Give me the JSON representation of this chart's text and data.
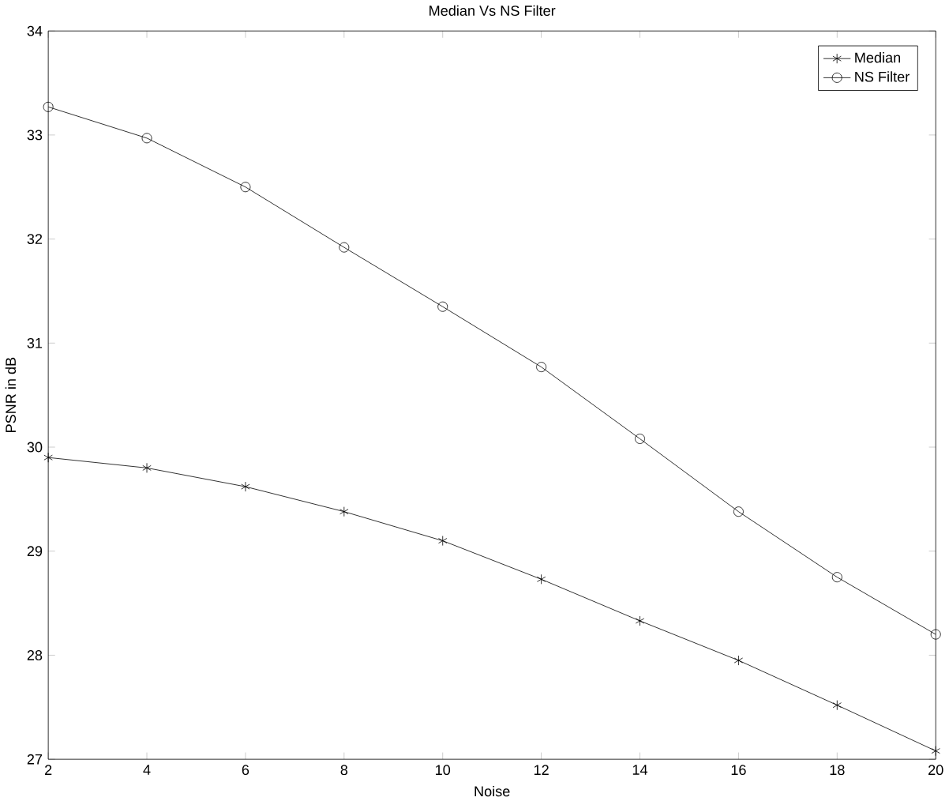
{
  "chart_data": {
    "type": "line",
    "title": "Median Vs NS Filter",
    "xlabel": "Noise",
    "ylabel": "PSNR in dB",
    "x": [
      2,
      4,
      6,
      8,
      10,
      12,
      14,
      16,
      18,
      20
    ],
    "series": [
      {
        "name": "Median",
        "color": "#000000",
        "marker": "cross",
        "values": [
          29.9,
          29.8,
          29.62,
          29.38,
          29.1,
          28.73,
          28.33,
          27.95,
          27.52,
          27.08
        ]
      },
      {
        "name": "NS Filter",
        "color": "#000000",
        "marker": "circle",
        "values": [
          33.27,
          32.97,
          32.5,
          31.92,
          31.35,
          30.77,
          30.08,
          29.38,
          28.75,
          28.2
        ]
      }
    ],
    "xlim": [
      2,
      20
    ],
    "ylim": [
      27,
      34
    ],
    "xticks": [
      2,
      4,
      6,
      8,
      10,
      12,
      14,
      16,
      18,
      20
    ],
    "yticks": [
      27,
      28,
      29,
      30,
      31,
      32,
      33,
      34
    ],
    "legend": "top right",
    "grid": false,
    "line_style": "solid"
  }
}
